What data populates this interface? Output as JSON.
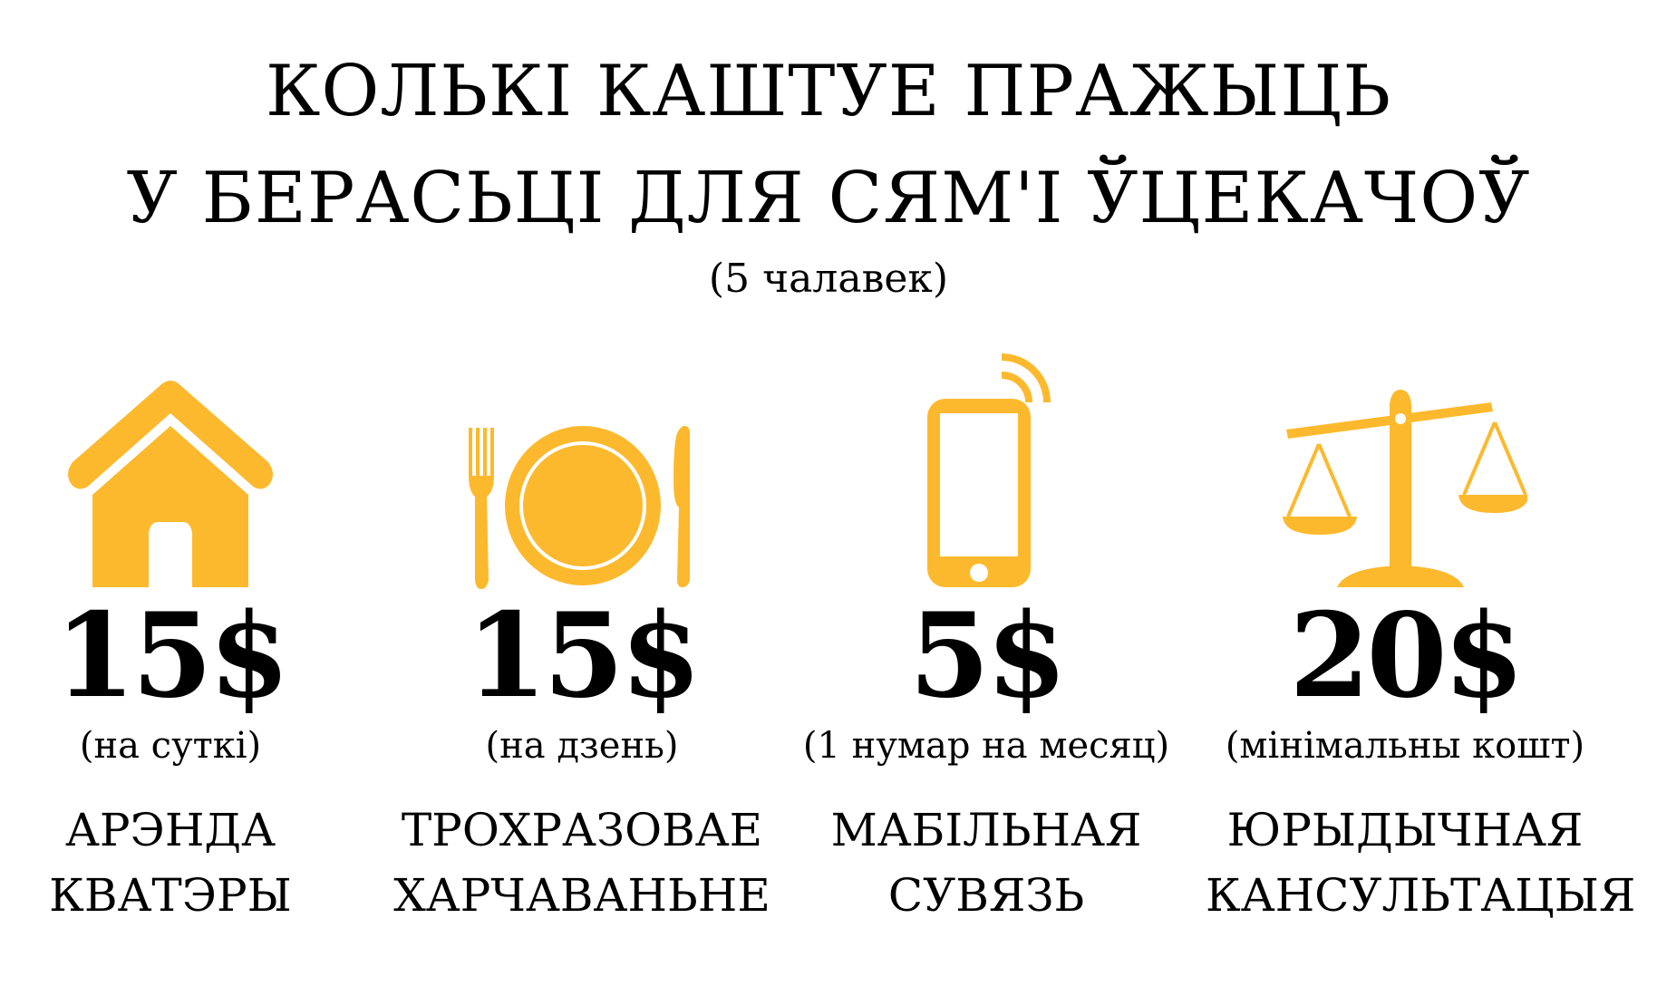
{
  "title": {
    "line1": "КОЛЬКІ КАШТУЕ ПРАЖЫЦЬ",
    "line2": "У БЕРАСЬЦІ ДЛЯ СЯМ'І ЎЦЕКАЧОЎ",
    "subtitle": "(5 чалавек)"
  },
  "accent_color": "#FDB92D",
  "items": [
    {
      "icon": "house-icon",
      "price": "15$",
      "note": "(на суткі)",
      "label1": "АРЭНДА",
      "label2": "КВАТЭРЫ"
    },
    {
      "icon": "plate-fork-knife-icon",
      "price": "15$",
      "note": "(на дзень)",
      "label1": "ТРОХРАЗОВАЕ",
      "label2": "ХАРЧАВАНЬНЕ"
    },
    {
      "icon": "mobile-phone-icon",
      "price": "5$",
      "note": "(1 нумар на месяц)",
      "label1": "МАБІЛЬНАЯ",
      "label2": "СУВЯЗЬ"
    },
    {
      "icon": "scales-icon",
      "price": "20$",
      "note": "(мінімальны кошт)",
      "label1": "ЮРЫДЫЧНАЯ",
      "label2": "КАНСУЛЬТАЦЫЯ"
    }
  ]
}
